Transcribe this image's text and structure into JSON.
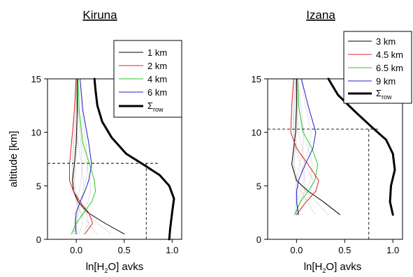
{
  "ylabel": "altitude [km]",
  "xlabel_parts": {
    "a": "ln[H",
    "sub": "2",
    "b": "O] avks"
  },
  "sigma_parts": {
    "sym": "Σ",
    "sub": "row"
  },
  "colors": {
    "black": "#000000",
    "red": "#e02020",
    "green": "#22cc22",
    "blue": "#2020d0",
    "grey": "#b5b5b5"
  },
  "chart_data": [
    {
      "type": "line",
      "title": "Kiruna",
      "xlim": [
        -0.3,
        1.1
      ],
      "ylim": [
        0,
        15
      ],
      "xticks": [
        "0.0",
        "0.5",
        "1.0"
      ],
      "xtick_values": [
        0,
        0.5,
        1
      ],
      "yticks": [
        "0",
        "5",
        "10",
        "15"
      ],
      "ytick_values": [
        0,
        5,
        10,
        15
      ],
      "legend_position": "top-right",
      "dashed_crosshair": {
        "x": 0.73,
        "y": 7.1
      },
      "series": [
        {
          "name": "1 km",
          "color": "black",
          "width": 1,
          "x": [
            0.5,
            0.3,
            0.12,
            0.02,
            -0.03,
            -0.04,
            -0.02,
            0.0,
            0.01,
            0.01
          ],
          "y": [
            0.5,
            1.5,
            2.5,
            3.5,
            4.5,
            5.5,
            7.0,
            9.0,
            12.0,
            15.0
          ]
        },
        {
          "name": "2 km",
          "color": "red",
          "width": 1,
          "x": [
            0.09,
            0.17,
            0.13,
            0.04,
            -0.03,
            -0.07,
            -0.07,
            -0.05,
            -0.02,
            0.0
          ],
          "y": [
            0.5,
            1.5,
            2.5,
            3.5,
            4.5,
            5.5,
            7.0,
            9.0,
            12.0,
            15.0
          ]
        },
        {
          "name": "4 km",
          "color": "green",
          "width": 1,
          "x": [
            -0.05,
            0.0,
            0.08,
            0.16,
            0.2,
            0.19,
            0.14,
            0.07,
            0.03,
            0.02
          ],
          "y": [
            0.5,
            1.5,
            2.5,
            3.5,
            4.5,
            5.5,
            7.0,
            9.0,
            12.0,
            15.0
          ]
        },
        {
          "name": "6 km",
          "color": "blue",
          "width": 1,
          "x": [
            0.0,
            -0.01,
            0.0,
            0.04,
            0.09,
            0.13,
            0.16,
            0.13,
            0.07,
            0.04
          ],
          "y": [
            0.5,
            1.5,
            2.5,
            3.5,
            4.5,
            5.5,
            7.0,
            9.0,
            12.0,
            15.0
          ]
        },
        {
          "name": "Σrow",
          "color": "black",
          "width": 3,
          "x": [
            0.97,
            0.98,
            1.0,
            1.02,
            0.97,
            0.87,
            0.7,
            0.52,
            0.37,
            0.27,
            0.22,
            0.2,
            0.19
          ],
          "y": [
            0.0,
            1.0,
            2.5,
            3.8,
            5.0,
            6.0,
            7.0,
            8.0,
            9.5,
            11.0,
            12.5,
            14.0,
            15.0
          ]
        }
      ]
    },
    {
      "type": "line",
      "title": "Izana",
      "xlim": [
        -0.3,
        1.1
      ],
      "ylim": [
        0,
        15
      ],
      "xticks": [
        "0.0",
        "0.5",
        "1.0"
      ],
      "xtick_values": [
        0,
        0.5,
        1
      ],
      "yticks": [
        "0",
        "5",
        "10",
        "15"
      ],
      "ytick_values": [
        0,
        5,
        10,
        15
      ],
      "legend_position": "top-right",
      "dashed_crosshair": {
        "x": 0.75,
        "y": 10.3
      },
      "series": [
        {
          "name": "3 km",
          "color": "black",
          "width": 1,
          "x": [
            0.45,
            0.28,
            0.12,
            0.0,
            -0.05,
            -0.03,
            -0.01,
            0.0,
            0.0
          ],
          "y": [
            2.3,
            3.5,
            4.5,
            5.5,
            7.0,
            8.5,
            10.0,
            12.5,
            15.0
          ]
        },
        {
          "name": "4.5 km",
          "color": "red",
          "width": 1,
          "x": [
            0.0,
            0.1,
            0.2,
            0.23,
            0.12,
            0.0,
            -0.06,
            -0.05,
            -0.03
          ],
          "y": [
            2.3,
            3.5,
            4.5,
            5.5,
            7.0,
            8.5,
            10.0,
            12.5,
            15.0
          ]
        },
        {
          "name": "6.5 km",
          "color": "green",
          "width": 1,
          "x": [
            -0.02,
            0.04,
            0.12,
            0.19,
            0.22,
            0.16,
            0.07,
            0.02,
            0.01
          ],
          "y": [
            2.3,
            3.5,
            4.5,
            5.5,
            7.0,
            8.5,
            10.0,
            12.5,
            15.0
          ]
        },
        {
          "name": "9 km",
          "color": "blue",
          "width": 1,
          "x": [
            0.02,
            0.0,
            0.0,
            0.02,
            0.09,
            0.17,
            0.2,
            0.12,
            0.05
          ],
          "y": [
            2.3,
            3.5,
            4.5,
            5.5,
            7.0,
            8.5,
            10.0,
            12.5,
            15.0
          ]
        },
        {
          "name": "Σrow",
          "color": "black",
          "width": 3,
          "x": [
            1.0,
            0.97,
            0.98,
            1.02,
            1.0,
            0.93,
            0.78,
            0.6,
            0.43,
            0.33
          ],
          "y": [
            2.3,
            3.5,
            5.0,
            6.5,
            8.0,
            9.3,
            10.5,
            12.0,
            13.5,
            15.0
          ]
        }
      ]
    }
  ]
}
